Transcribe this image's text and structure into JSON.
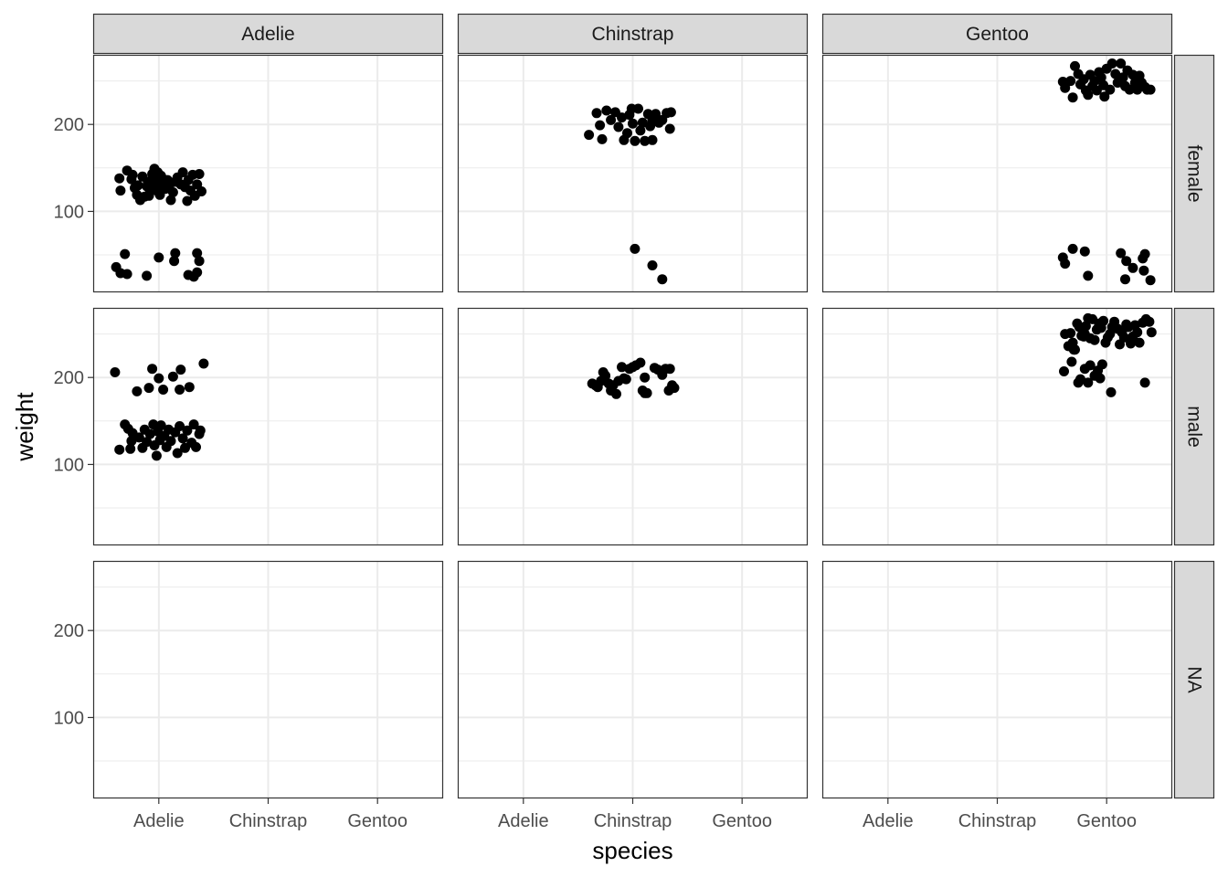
{
  "chart_data": {
    "type": "scatter",
    "facet_cols": [
      "Adelie",
      "Chinstrap",
      "Gentoo"
    ],
    "facet_rows": [
      "female",
      "male",
      "NA"
    ],
    "xlabel": "species",
    "ylabel": "weight",
    "x_categories": [
      "Adelie",
      "Chinstrap",
      "Gentoo"
    ],
    "y_ticks": [
      100,
      200
    ],
    "ylim": [
      7,
      280
    ],
    "grid": true,
    "colors": {
      "point": "#000000",
      "strip_bg": "#d9d9d9",
      "grid": "#ebebeb",
      "border": "#333333"
    },
    "panels": [
      {
        "col": "Adelie",
        "row": "female",
        "points": [
          [
            -0.39,
            36
          ],
          [
            -0.35,
            29
          ],
          [
            -0.29,
            28
          ],
          [
            -0.31,
            51
          ],
          [
            -0.11,
            26
          ],
          [
            0,
            47
          ],
          [
            0.14,
            43
          ],
          [
            0.15,
            52
          ],
          [
            0.27,
            27
          ],
          [
            0.32,
            25
          ],
          [
            0.35,
            30
          ],
          [
            0.37,
            43
          ],
          [
            0.35,
            52
          ],
          [
            -0.36,
            138
          ],
          [
            -0.35,
            124
          ],
          [
            -0.29,
            147
          ],
          [
            -0.25,
            137
          ],
          [
            -0.24,
            142
          ],
          [
            -0.22,
            127
          ],
          [
            -0.2,
            119
          ],
          [
            -0.19,
            130
          ],
          [
            -0.17,
            113
          ],
          [
            -0.15,
            140
          ],
          [
            -0.13,
            117
          ],
          [
            -0.11,
            129
          ],
          [
            -0.1,
            134
          ],
          [
            -0.09,
            118
          ],
          [
            -0.08,
            124
          ],
          [
            -0.06,
            143
          ],
          [
            -0.05,
            137
          ],
          [
            -0.04,
            149
          ],
          [
            -0.03,
            130
          ],
          [
            -0.02,
            124
          ],
          [
            -0.01,
            145
          ],
          [
            0,
            133
          ],
          [
            0.01,
            119
          ],
          [
            0.02,
            141
          ],
          [
            0.03,
            128
          ],
          [
            0.04,
            137
          ],
          [
            0.05,
            134
          ],
          [
            0.06,
            126
          ],
          [
            0.08,
            136
          ],
          [
            0.1,
            131
          ],
          [
            0.11,
            113
          ],
          [
            0.13,
            122
          ],
          [
            0.15,
            134
          ],
          [
            0.17,
            139
          ],
          [
            0.2,
            131
          ],
          [
            0.22,
            145
          ],
          [
            0.24,
            128
          ],
          [
            0.26,
            112
          ],
          [
            0.27,
            136
          ],
          [
            0.29,
            124
          ],
          [
            0.31,
            142
          ],
          [
            0.33,
            118
          ],
          [
            0.35,
            131
          ],
          [
            0.37,
            143
          ],
          [
            0.39,
            123
          ]
        ]
      },
      {
        "col": "Chinstrap",
        "row": "female",
        "points": [
          [
            0.02,
            57
          ],
          [
            0.18,
            38
          ],
          [
            0.27,
            22
          ],
          [
            -0.4,
            188
          ],
          [
            -0.33,
            213
          ],
          [
            -0.3,
            199
          ],
          [
            -0.28,
            183
          ],
          [
            -0.24,
            216
          ],
          [
            -0.2,
            205
          ],
          [
            -0.16,
            214
          ],
          [
            -0.13,
            197
          ],
          [
            -0.1,
            208
          ],
          [
            -0.08,
            182
          ],
          [
            -0.05,
            190
          ],
          [
            -0.03,
            211
          ],
          [
            -0.01,
            218
          ],
          [
            0,
            201
          ],
          [
            0.02,
            181
          ],
          [
            0.05,
            218
          ],
          [
            0.07,
            193
          ],
          [
            0.09,
            202
          ],
          [
            0.11,
            181
          ],
          [
            0.14,
            212
          ],
          [
            0.16,
            198
          ],
          [
            0.18,
            205
          ],
          [
            0.18,
            182
          ],
          [
            0.21,
            212
          ],
          [
            0.24,
            202
          ],
          [
            0.27,
            205
          ],
          [
            0.31,
            213
          ],
          [
            0.34,
            195
          ],
          [
            0.35,
            214
          ]
        ]
      },
      {
        "col": "Gentoo",
        "row": "female",
        "points": [
          [
            -0.4,
            47
          ],
          [
            -0.38,
            40
          ],
          [
            -0.31,
            57
          ],
          [
            -0.17,
            26
          ],
          [
            -0.2,
            54
          ],
          [
            0.13,
            52
          ],
          [
            0.17,
            22
          ],
          [
            0.18,
            43
          ],
          [
            0.24,
            35
          ],
          [
            0.33,
            46
          ],
          [
            0.35,
            51
          ],
          [
            0.34,
            32
          ],
          [
            0.4,
            21
          ],
          [
            -0.4,
            249
          ],
          [
            -0.38,
            242
          ],
          [
            -0.33,
            250
          ],
          [
            -0.31,
            231
          ],
          [
            -0.29,
            267
          ],
          [
            -0.26,
            258
          ],
          [
            -0.24,
            246
          ],
          [
            -0.21,
            252
          ],
          [
            -0.19,
            239
          ],
          [
            -0.17,
            234
          ],
          [
            -0.15,
            257
          ],
          [
            -0.13,
            244
          ],
          [
            -0.11,
            250
          ],
          [
            -0.09,
            239
          ],
          [
            -0.07,
            260
          ],
          [
            -0.05,
            254
          ],
          [
            -0.03,
            245
          ],
          [
            -0.02,
            232
          ],
          [
            0,
            264
          ],
          [
            0.03,
            240
          ],
          [
            0.05,
            270
          ],
          [
            0.08,
            258
          ],
          [
            0.1,
            248
          ],
          [
            0.13,
            270
          ],
          [
            0.15,
            254
          ],
          [
            0.17,
            244
          ],
          [
            0.19,
            262
          ],
          [
            0.21,
            240
          ],
          [
            0.24,
            257
          ],
          [
            0.26,
            248
          ],
          [
            0.28,
            240
          ],
          [
            0.3,
            256
          ],
          [
            0.32,
            248
          ],
          [
            0.35,
            243
          ],
          [
            0.37,
            240
          ],
          [
            0.4,
            240
          ]
        ]
      },
      {
        "col": "Adelie",
        "row": "male",
        "points": [
          [
            -0.4,
            206
          ],
          [
            -0.36,
            117
          ],
          [
            -0.31,
            146
          ],
          [
            -0.28,
            141
          ],
          [
            -0.26,
            118
          ],
          [
            -0.25,
            127
          ],
          [
            -0.24,
            136
          ],
          [
            -0.2,
            184
          ],
          [
            -0.18,
            131
          ],
          [
            -0.15,
            119
          ],
          [
            -0.13,
            140
          ],
          [
            -0.11,
            126
          ],
          [
            -0.09,
            188
          ],
          [
            -0.08,
            135
          ],
          [
            -0.06,
            210
          ],
          [
            -0.05,
            146
          ],
          [
            -0.04,
            122
          ],
          [
            -0.02,
            110
          ],
          [
            -0.01,
            138
          ],
          [
            0,
            199
          ],
          [
            0.01,
            128
          ],
          [
            0.02,
            145
          ],
          [
            0.04,
            186
          ],
          [
            0.05,
            133
          ],
          [
            0.07,
            120
          ],
          [
            0.09,
            140
          ],
          [
            0.11,
            127
          ],
          [
            0.13,
            201
          ],
          [
            0.15,
            137
          ],
          [
            0.17,
            113
          ],
          [
            0.19,
            186
          ],
          [
            0.19,
            144
          ],
          [
            0.2,
            209
          ],
          [
            0.22,
            130
          ],
          [
            0.24,
            119
          ],
          [
            0.26,
            139
          ],
          [
            0.28,
            189
          ],
          [
            0.3,
            125
          ],
          [
            0.32,
            146
          ],
          [
            0.34,
            120
          ],
          [
            0.37,
            135
          ],
          [
            0.38,
            139
          ],
          [
            0.41,
            216
          ]
        ]
      },
      {
        "col": "Chinstrap",
        "row": "male",
        "points": [
          [
            -0.37,
            193
          ],
          [
            -0.34,
            191
          ],
          [
            -0.32,
            189
          ],
          [
            -0.29,
            196
          ],
          [
            -0.27,
            206
          ],
          [
            -0.25,
            202
          ],
          [
            -0.22,
            193
          ],
          [
            -0.2,
            185
          ],
          [
            -0.18,
            191
          ],
          [
            -0.15,
            181
          ],
          [
            -0.13,
            196
          ],
          [
            -0.1,
            212
          ],
          [
            -0.08,
            199
          ],
          [
            -0.06,
            198
          ],
          [
            -0.03,
            210
          ],
          [
            0,
            212
          ],
          [
            0.03,
            214
          ],
          [
            0.07,
            217
          ],
          [
            0.09,
            185
          ],
          [
            0.11,
            182
          ],
          [
            0.13,
            182
          ],
          [
            0.11,
            200
          ],
          [
            0.2,
            211
          ],
          [
            0.23,
            209
          ],
          [
            0.27,
            203
          ],
          [
            0.3,
            210
          ],
          [
            0.33,
            185
          ],
          [
            0.36,
            191
          ],
          [
            0.38,
            188
          ],
          [
            0.34,
            210
          ]
        ]
      },
      {
        "col": "Gentoo",
        "row": "male",
        "points": [
          [
            -0.26,
            194
          ],
          [
            -0.24,
            198
          ],
          [
            -0.2,
            210
          ],
          [
            -0.17,
            194
          ],
          [
            -0.15,
            214
          ],
          [
            -0.11,
            202
          ],
          [
            -0.08,
            208
          ],
          [
            -0.06,
            199
          ],
          [
            -0.04,
            215
          ],
          [
            0.04,
            183
          ],
          [
            -0.3,
            232
          ],
          [
            -0.32,
            218
          ],
          [
            -0.39,
            207
          ],
          [
            -0.2,
            250
          ],
          [
            0.35,
            194
          ],
          [
            -0.38,
            250
          ],
          [
            -0.35,
            236
          ],
          [
            -0.33,
            251
          ],
          [
            -0.31,
            240
          ],
          [
            -0.29,
            232
          ],
          [
            -0.27,
            262
          ],
          [
            -0.25,
            258
          ],
          [
            -0.23,
            248
          ],
          [
            -0.21,
            247
          ],
          [
            -0.19,
            259
          ],
          [
            -0.17,
            268
          ],
          [
            -0.15,
            245
          ],
          [
            -0.13,
            267
          ],
          [
            -0.11,
            243
          ],
          [
            -0.09,
            255
          ],
          [
            -0.07,
            262
          ],
          [
            -0.05,
            257
          ],
          [
            -0.03,
            265
          ],
          [
            -0.01,
            240
          ],
          [
            0.01,
            246
          ],
          [
            0.03,
            250
          ],
          [
            0.05,
            258
          ],
          [
            0.07,
            264
          ],
          [
            0.1,
            256
          ],
          [
            0.12,
            238
          ],
          [
            0.14,
            252
          ],
          [
            0.16,
            246
          ],
          [
            0.18,
            261
          ],
          [
            0.2,
            258
          ],
          [
            0.22,
            239
          ],
          [
            0.24,
            247
          ],
          [
            0.26,
            260
          ],
          [
            0.28,
            252
          ],
          [
            0.3,
            240
          ],
          [
            0.33,
            263
          ],
          [
            0.36,
            267
          ],
          [
            0.39,
            264
          ],
          [
            0.41,
            252
          ]
        ]
      },
      {
        "col": "Adelie",
        "row": "NA",
        "points": []
      },
      {
        "col": "Chinstrap",
        "row": "NA",
        "points": []
      },
      {
        "col": "Gentoo",
        "row": "NA",
        "points": []
      }
    ]
  }
}
